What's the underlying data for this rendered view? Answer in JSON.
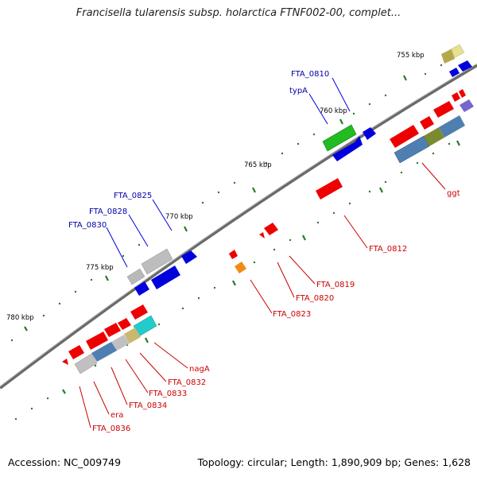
{
  "title": "Francisella tularensis subsp. holarctica FTNF002-00, complet...",
  "footer": {
    "accession": "Accession: NC_009749",
    "summary": "Topology: circular; Length: 1,890,909 bp; Genes: 1,628"
  },
  "ticks": [
    {
      "label": "755 kbp"
    },
    {
      "label": "760 kbp"
    },
    {
      "label": "765 kbp"
    },
    {
      "label": "770 kbp"
    },
    {
      "label": "775 kbp"
    },
    {
      "label": "780 kbp"
    }
  ],
  "gene_labels_blue": [
    {
      "label": "FTA_0810"
    },
    {
      "label": "typA"
    },
    {
      "label": "FTA_0825"
    },
    {
      "label": "FTA_0828"
    },
    {
      "label": "FTA_0830"
    }
  ],
  "gene_labels_red": [
    {
      "label": "ggt"
    },
    {
      "label": "FTA_0812"
    },
    {
      "label": "FTA_0819"
    },
    {
      "label": "FTA_0820"
    },
    {
      "label": "FTA_0823"
    },
    {
      "label": "nagA"
    },
    {
      "label": "FTA_0832"
    },
    {
      "label": "FTA_0833"
    },
    {
      "label": "FTA_0834"
    },
    {
      "label": "era"
    },
    {
      "label": "FTA_0836"
    }
  ],
  "colors": {
    "forward_cds": "#0000dd",
    "reverse_cds": "#ee0000",
    "trna_green": "#22bb22",
    "backbone": "#777777",
    "tick_green": "#2a7a2a",
    "label_blue": "#0000aa",
    "label_red": "#cc0000"
  }
}
